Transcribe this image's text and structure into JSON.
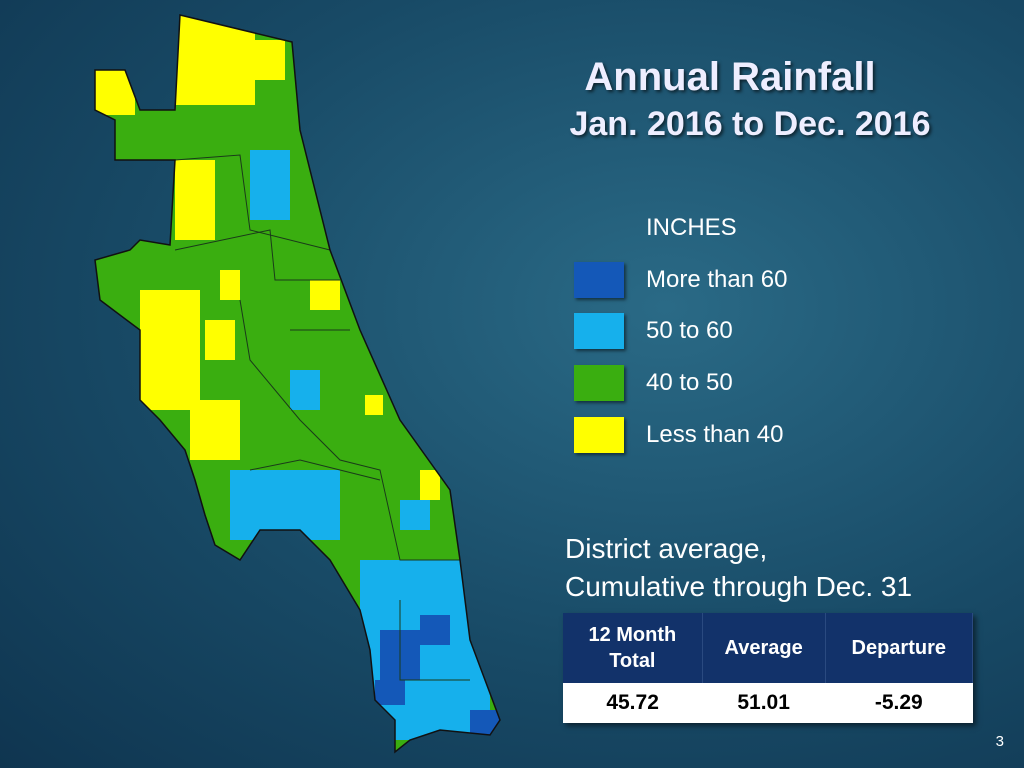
{
  "title": "Annual Rainfall",
  "subtitle": "Jan. 2016 to Dec. 2016",
  "legend": {
    "heading": "INCHES",
    "items": [
      {
        "label": "More than 60",
        "color": "#1458b8"
      },
      {
        "label": "50 to 60",
        "color": "#16b0ec"
      },
      {
        "label": "40 to 50",
        "color": "#3aae10"
      },
      {
        "label": "Less than 40",
        "color": "#ffff00"
      }
    ]
  },
  "summary": {
    "line1": "District average,",
    "line2": "Cumulative through Dec. 31"
  },
  "table": {
    "headers": [
      "12 Month Total",
      "Average",
      "Departure"
    ],
    "values": [
      "45.72",
      "51.01",
      "-5.29"
    ]
  },
  "page_number": "3"
}
